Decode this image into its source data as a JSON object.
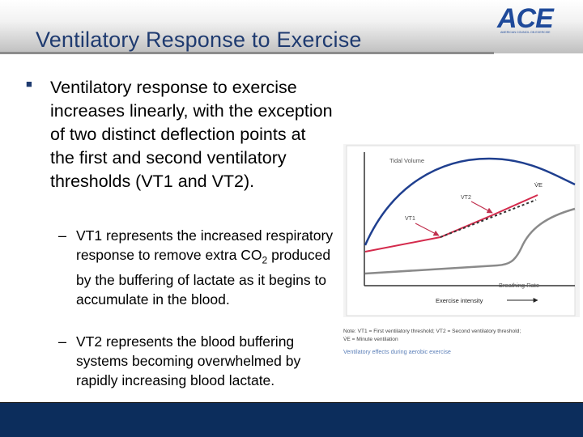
{
  "slide": {
    "title": "Ventilatory Response to Exercise",
    "logo_text": "ACE",
    "logo_tagline": "AMERICAN COUNCIL ON EXERCISE",
    "main_bullet": "Ventilatory response to exercise increases linearly, with the exception of two distinct deflection points at the first and second ventilatory thresholds (VT1 and VT2).",
    "sub_bullet_1": {
      "before": "VT1 represents the increased respiratory response to remove extra CO",
      "subscript": "2",
      "after": " produced by the buffering of lactate as it begins to accumulate in the blood."
    },
    "sub_bullet_2": "VT2 represents the blood buffering systems becoming overwhelmed by rapidly increasing blood lactate."
  },
  "figure": {
    "curve_labels": {
      "tidal_volume": "Tidal Volume",
      "ve": "V̇E",
      "vt2": "VT2",
      "vt1": "VT1",
      "breathing_rate": "Breathing Rate"
    },
    "xaxis_label": "Exercise intensity",
    "note_line1": "Note: VT1 = First ventilatory threshold; VT2 = Second ventilatory threshold;",
    "note_line2": "V̇E = Minute ventilation",
    "caption": "Ventilatory effects during aerobic exercise",
    "colors": {
      "tidal_volume": "#1f3f8f",
      "ve": "#d42a4c",
      "breathing_rate": "#808080",
      "caption": "#5b7fb8"
    }
  }
}
